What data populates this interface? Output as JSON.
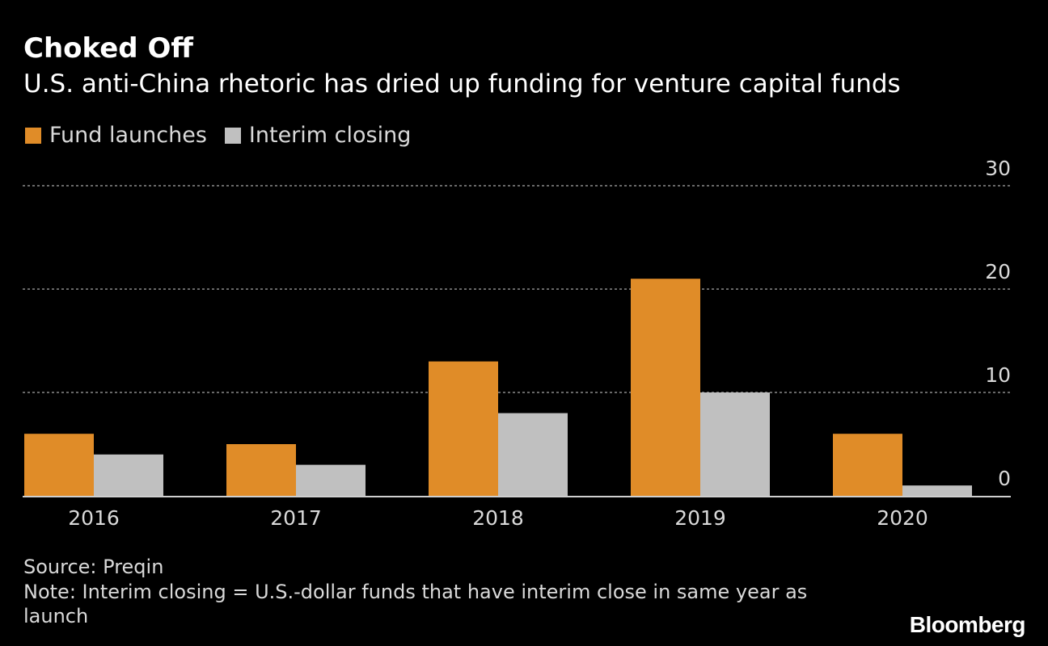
{
  "chart_data": {
    "type": "bar",
    "title": "Choked Off",
    "subtitle": "U.S. anti-China rhetoric has dried up funding for venture capital funds",
    "categories": [
      "2016",
      "2017",
      "2018",
      "2019",
      "2020"
    ],
    "series": [
      {
        "name": "Fund launches",
        "values": [
          6,
          5,
          13,
          21,
          6
        ],
        "color": "#e08c28"
      },
      {
        "name": "Interim closing",
        "values": [
          4,
          3,
          8,
          10,
          1
        ],
        "color": "#c0c0c0"
      }
    ],
    "ylim": [
      0,
      30
    ],
    "yticks": [
      "0",
      "10",
      "20",
      "30"
    ],
    "grid": true,
    "legend": "top-left",
    "y_axis_position": "right"
  },
  "footer": {
    "source": "Source: Preqin",
    "note": "Note: Interim closing = U.S.-dollar funds that have interim close in same year as launch",
    "brand": "Bloomberg"
  }
}
